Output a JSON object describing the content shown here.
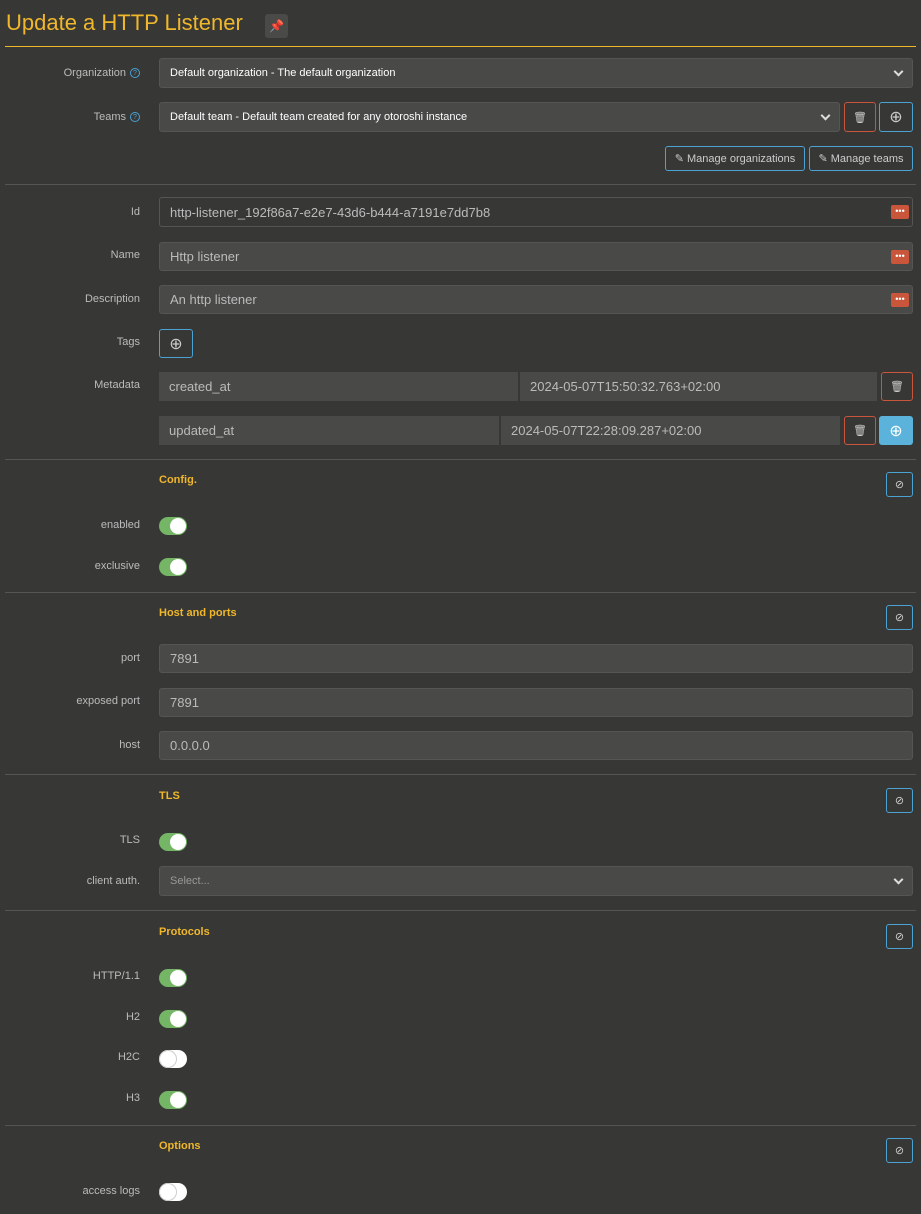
{
  "page": {
    "title": "Update a HTTP Listener",
    "pin_icon": "pin-icon"
  },
  "org": {
    "label": "Organization",
    "value": "Default organization - The default organization"
  },
  "teams": {
    "label": "Teams",
    "value": "Default team - Default team created for any otoroshi instance"
  },
  "buttons": {
    "manage_orgs": "Manage organizations",
    "manage_teams": "Manage teams"
  },
  "fields": {
    "id": {
      "label": "Id",
      "value": "http-listener_192f86a7-e2e7-43d6-b444-a7191e7dd7b8"
    },
    "name": {
      "label": "Name",
      "value": "Http listener"
    },
    "description": {
      "label": "Description",
      "value": "An http listener"
    },
    "tags": {
      "label": "Tags"
    },
    "metadata": {
      "label": "Metadata",
      "entries": [
        {
          "key": "created_at",
          "value": "2024-05-07T15:50:32.763+02:00"
        },
        {
          "key": "updated_at",
          "value": "2024-05-07T22:28:09.287+02:00"
        }
      ]
    }
  },
  "config": {
    "title": "Config.",
    "enabled": {
      "label": "enabled",
      "on": true
    },
    "exclusive": {
      "label": "exclusive",
      "on": true
    }
  },
  "host": {
    "title": "Host and ports",
    "port": {
      "label": "port",
      "value": "7891"
    },
    "exposed": {
      "label": "exposed port",
      "value": "7891"
    },
    "host": {
      "label": "host",
      "value": "0.0.0.0"
    }
  },
  "tls": {
    "title": "TLS",
    "tls": {
      "label": "TLS",
      "on": true
    },
    "client_auth": {
      "label": "client auth.",
      "placeholder": "Select..."
    }
  },
  "protocols": {
    "title": "Protocols",
    "items": [
      {
        "label": "HTTP/1.1",
        "on": true
      },
      {
        "label": "H2",
        "on": true
      },
      {
        "label": "H2C",
        "on": false
      },
      {
        "label": "H3",
        "on": true
      }
    ]
  },
  "options": {
    "title": "Options",
    "access_logs": {
      "label": "access logs",
      "on": false
    }
  },
  "colors": {
    "accent": "#f0b72b",
    "info": "#4aa3d3",
    "danger": "#c9553b",
    "toggle_on": "#74b566"
  }
}
